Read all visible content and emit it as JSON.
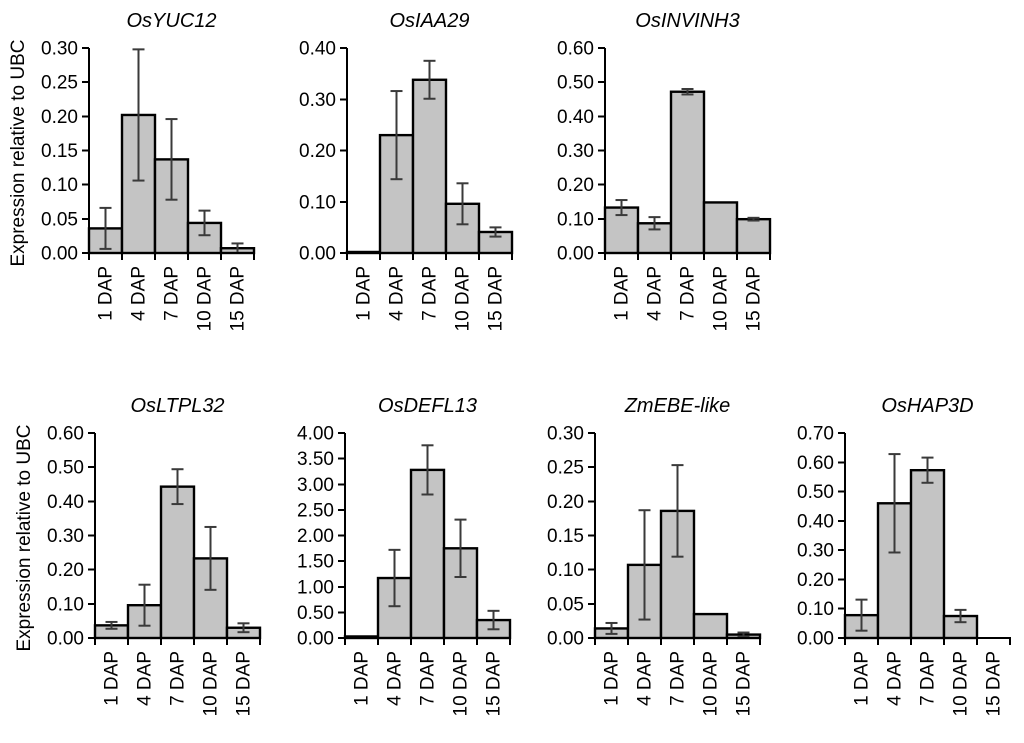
{
  "figure": {
    "ylabel": "Expression relative to UBC",
    "x_unit": "DAP",
    "colors": {
      "bar_fill": "#c4c4c4",
      "bar_stroke": "#000000",
      "error_bar": "#3a3a3a",
      "axis": "#000000",
      "text": "#000000",
      "background": "#ffffff"
    }
  },
  "chart_data": [
    {
      "type": "bar",
      "row": 1,
      "title": "OsYUC12",
      "categories": [
        "1 DAP",
        "4 DAP",
        "7 DAP",
        "10 DAP",
        "15 DAP"
      ],
      "values": [
        0.036,
        0.202,
        0.137,
        0.044,
        0.007
      ],
      "errors": [
        0.03,
        0.096,
        0.059,
        0.018,
        0.007
      ],
      "ylim": [
        0,
        0.3
      ],
      "ystep": 0.05,
      "grid": false,
      "legend": "none",
      "xlabel": "",
      "ylabel": "Expression relative to UBC"
    },
    {
      "type": "bar",
      "row": 1,
      "title": "OsIAA29",
      "categories": [
        "1 DAP",
        "4 DAP",
        "7 DAP",
        "10 DAP",
        "15 DAP"
      ],
      "values": [
        0.002,
        0.23,
        0.338,
        0.096,
        0.041
      ],
      "errors": [
        0,
        0.086,
        0.037,
        0.04,
        0.009
      ],
      "ylim": [
        0,
        0.4
      ],
      "ystep": 0.1,
      "grid": false,
      "legend": "none",
      "xlabel": "",
      "ylabel": ""
    },
    {
      "type": "bar",
      "row": 1,
      "title": "OsINVINH3",
      "categories": [
        "1 DAP",
        "4 DAP",
        "7 DAP",
        "10 DAP",
        "15 DAP"
      ],
      "values": [
        0.133,
        0.087,
        0.472,
        0.148,
        0.099
      ],
      "errors": [
        0.022,
        0.018,
        0.008,
        0,
        0.004
      ],
      "ylim": [
        0,
        0.6
      ],
      "ystep": 0.1,
      "grid": false,
      "legend": "none",
      "xlabel": "",
      "ylabel": ""
    },
    {
      "type": "bar",
      "row": 2,
      "title": "OsLTPL32",
      "categories": [
        "1 DAP",
        "4 DAP",
        "7 DAP",
        "10 DAP",
        "15 DAP"
      ],
      "values": [
        0.037,
        0.096,
        0.443,
        0.233,
        0.03
      ],
      "errors": [
        0.01,
        0.06,
        0.051,
        0.092,
        0.013
      ],
      "ylim": [
        0,
        0.6
      ],
      "ystep": 0.1,
      "grid": false,
      "legend": "none",
      "xlabel": "",
      "ylabel": "Expression relative to UBC"
    },
    {
      "type": "bar",
      "row": 2,
      "title": "OsDEFL13",
      "categories": [
        "1 DAP",
        "4 DAP",
        "7 DAP",
        "10 DAP",
        "15 DAP"
      ],
      "values": [
        0.03,
        1.17,
        3.28,
        1.75,
        0.35
      ],
      "errors": [
        0,
        0.55,
        0.48,
        0.56,
        0.18
      ],
      "ylim": [
        0,
        4.0
      ],
      "ystep": 0.5,
      "grid": false,
      "legend": "none",
      "xlabel": "",
      "ylabel": ""
    },
    {
      "type": "bar",
      "row": 2,
      "title": "ZmEBE-like",
      "categories": [
        "1 DAP",
        "4 DAP",
        "7 DAP",
        "10 DAP",
        "15 DAP"
      ],
      "values": [
        0.014,
        0.107,
        0.186,
        0.035,
        0.005
      ],
      "errors": [
        0.008,
        0.08,
        0.067,
        0,
        0.003
      ],
      "ylim": [
        0,
        0.3
      ],
      "ystep": 0.05,
      "grid": false,
      "legend": "none",
      "xlabel": "",
      "ylabel": ""
    },
    {
      "type": "bar",
      "row": 2,
      "title": "OsHAP3D",
      "categories": [
        "1 DAP",
        "4 DAP",
        "7 DAP",
        "10 DAP",
        "15 DAP"
      ],
      "values": [
        0.078,
        0.46,
        0.573,
        0.075,
        0
      ],
      "errors": [
        0.053,
        0.168,
        0.043,
        0.021,
        0
      ],
      "ylim": [
        0,
        0.7
      ],
      "ystep": 0.1,
      "grid": false,
      "legend": "none",
      "xlabel": "",
      "ylabel": ""
    }
  ]
}
